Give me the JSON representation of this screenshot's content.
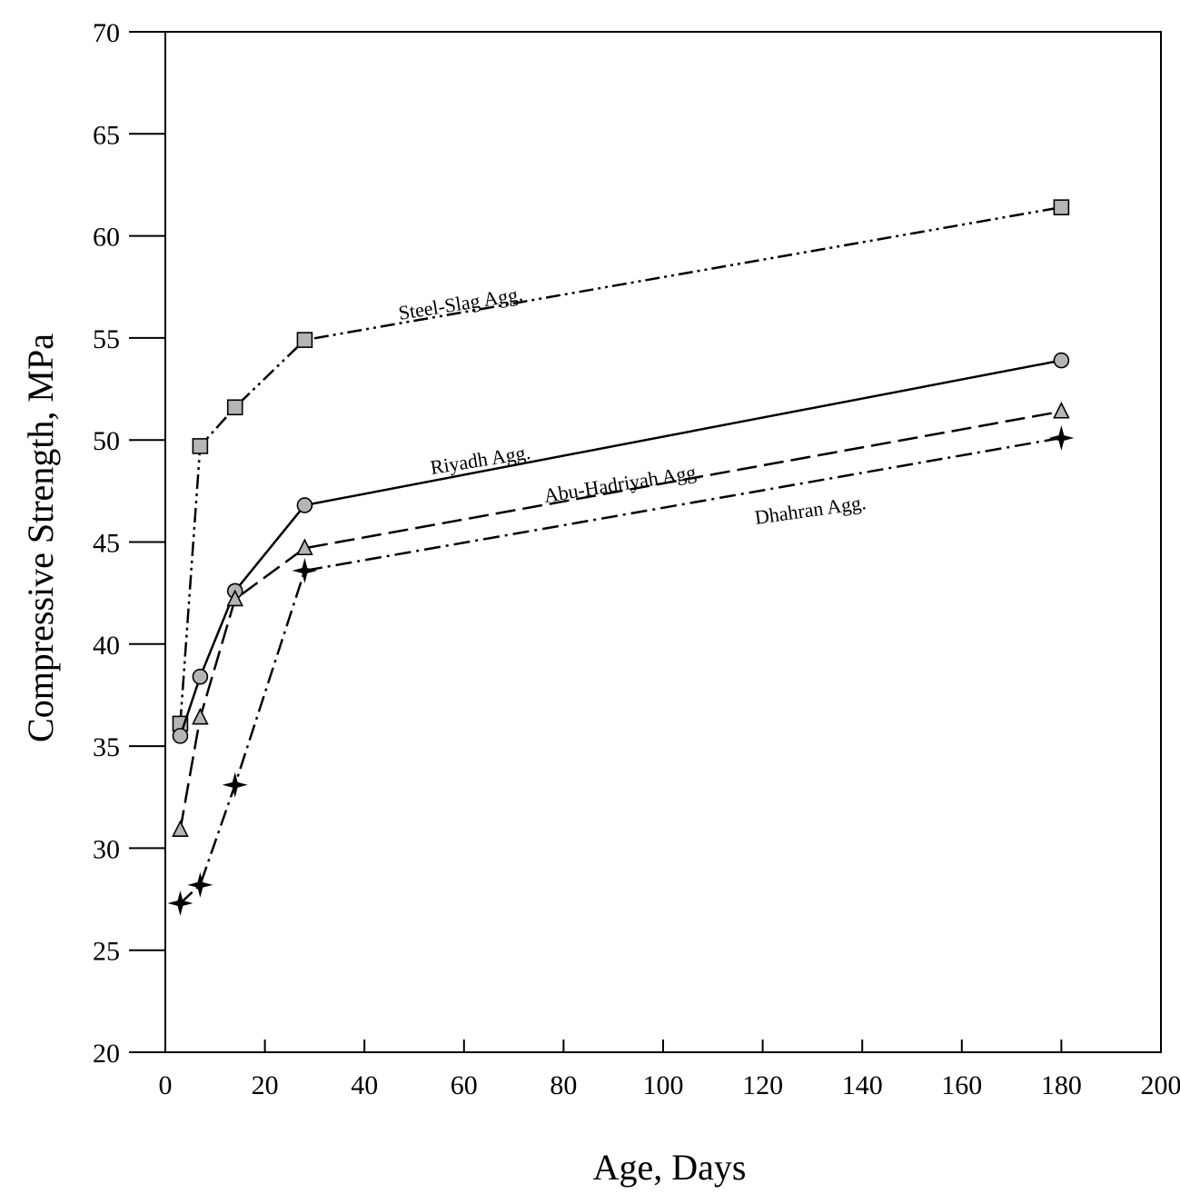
{
  "chart_data": {
    "type": "line",
    "title": "",
    "xlabel": "Age, Days",
    "ylabel": "Compressive Strength, MPa",
    "xlim": [
      0,
      200
    ],
    "ylim": [
      20,
      70
    ],
    "xticks": [
      "0",
      "20",
      "40",
      "60",
      "80",
      "100",
      "120",
      "140",
      "160",
      "180",
      "200"
    ],
    "yticks": [
      "20",
      "25",
      "30",
      "35",
      "40",
      "45",
      "50",
      "55",
      "60",
      "65",
      "70"
    ],
    "grid": false,
    "legend": "inline labels",
    "series": [
      {
        "name": "Steel-Slag Agg.",
        "marker": "square",
        "line_style": "dash-dot-dot",
        "x": [
          3,
          7,
          14,
          28,
          180
        ],
        "y": [
          36.1,
          49.7,
          51.6,
          54.9,
          61.4
        ]
      },
      {
        "name": "Riyadh Agg.",
        "marker": "circle",
        "line_style": "solid",
        "x": [
          3,
          7,
          14,
          28,
          180
        ],
        "y": [
          35.5,
          38.4,
          42.6,
          46.8,
          53.9
        ]
      },
      {
        "name": "Abu-Hadriyah Agg.",
        "marker": "triangle",
        "line_style": "dashed",
        "x": [
          3,
          7,
          14,
          28,
          180
        ],
        "y": [
          30.9,
          36.4,
          42.2,
          44.7,
          51.4
        ]
      },
      {
        "name": "Dhahran Agg.",
        "marker": "star",
        "line_style": "dash-dot",
        "x": [
          3,
          7,
          14,
          28,
          180
        ],
        "y": [
          27.3,
          28.2,
          33.1,
          43.6,
          50.1
        ]
      }
    ],
    "colors": {
      "line": "#000000",
      "marker_fill": "#b5b5b5"
    }
  }
}
